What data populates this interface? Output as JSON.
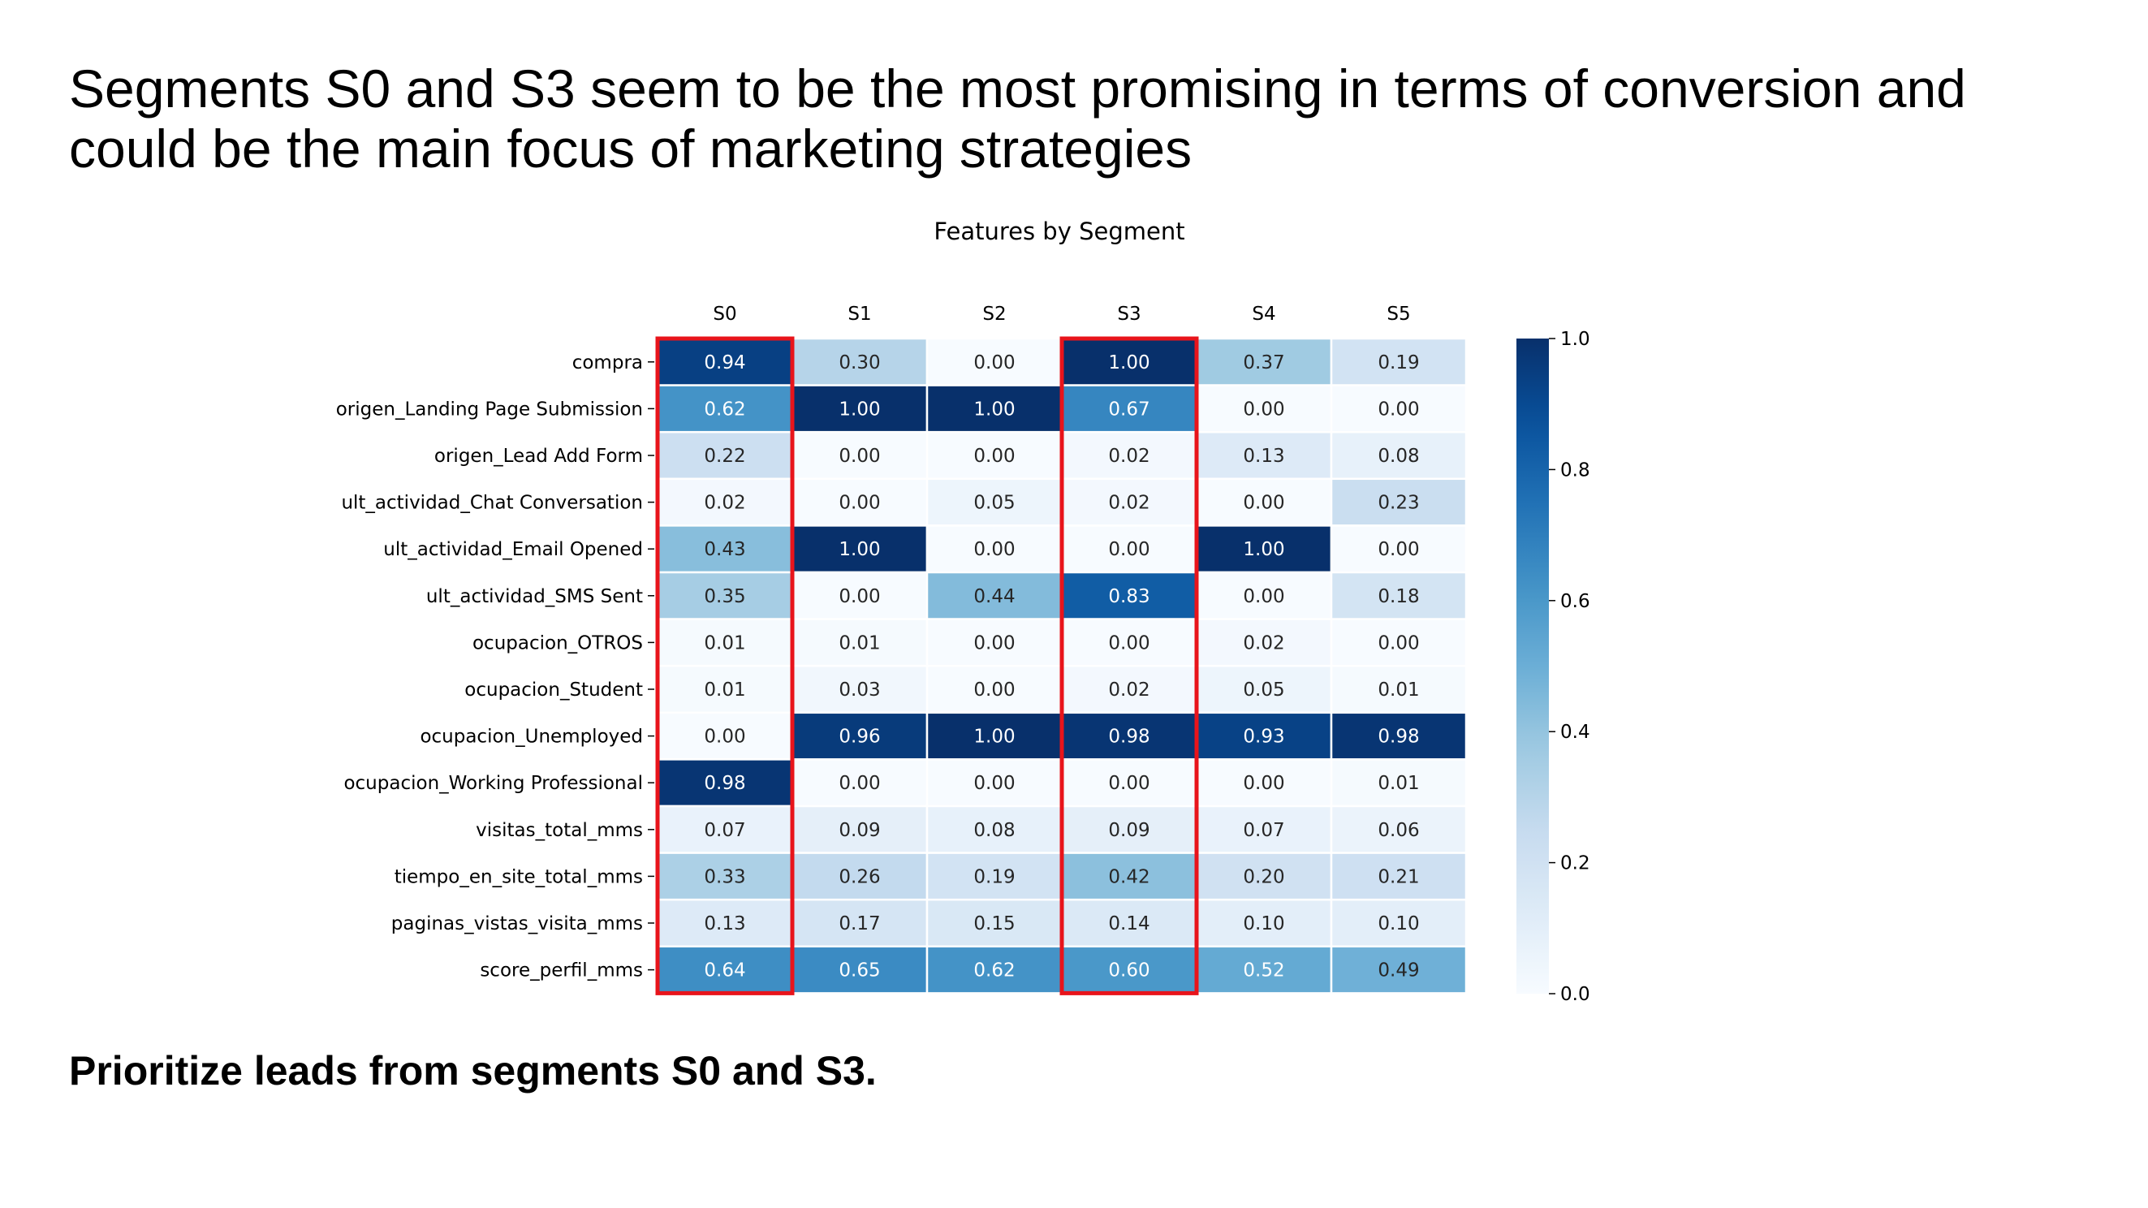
{
  "slide": {
    "headline": "Segments S0 and S3 seem to be the most promising in terms of conversion and could be the main focus of marketing strategies",
    "takeaway": "Prioritize leads from segments S0 and S3."
  },
  "chart_data": {
    "type": "heatmap",
    "title": "Features by Segment",
    "columns": [
      "S0",
      "S1",
      "S2",
      "S3",
      "S4",
      "S5"
    ],
    "rows": [
      "compra",
      "origen_Landing Page Submission",
      "origen_Lead Add Form",
      "ult_actividad_Chat Conversation",
      "ult_actividad_Email Opened",
      "ult_actividad_SMS Sent",
      "ocupacion_OTROS",
      "ocupacion_Student",
      "ocupacion_Unemployed",
      "ocupacion_Working Professional",
      "visitas_total_mms",
      "tiempo_en_site_total_mms",
      "paginas_vistas_visita_mms",
      "score_perfil_mms"
    ],
    "values": [
      [
        0.94,
        0.3,
        0.0,
        1.0,
        0.37,
        0.19
      ],
      [
        0.62,
        1.0,
        1.0,
        0.67,
        0.0,
        0.0
      ],
      [
        0.22,
        0.0,
        0.0,
        0.02,
        0.13,
        0.08
      ],
      [
        0.02,
        0.0,
        0.05,
        0.02,
        0.0,
        0.23
      ],
      [
        0.43,
        1.0,
        0.0,
        0.0,
        1.0,
        0.0
      ],
      [
        0.35,
        0.0,
        0.44,
        0.83,
        0.0,
        0.18
      ],
      [
        0.01,
        0.01,
        0.0,
        0.0,
        0.02,
        0.0
      ],
      [
        0.01,
        0.03,
        0.0,
        0.02,
        0.05,
        0.01
      ],
      [
        0.0,
        0.96,
        1.0,
        0.98,
        0.93,
        0.98
      ],
      [
        0.98,
        0.0,
        0.0,
        0.0,
        0.0,
        0.01
      ],
      [
        0.07,
        0.09,
        0.08,
        0.09,
        0.07,
        0.06
      ],
      [
        0.33,
        0.26,
        0.19,
        0.42,
        0.2,
        0.21
      ],
      [
        0.13,
        0.17,
        0.15,
        0.14,
        0.1,
        0.1
      ],
      [
        0.64,
        0.65,
        0.62,
        0.6,
        0.52,
        0.49
      ]
    ],
    "colormap": "Blues",
    "colorbar": {
      "min": 0.0,
      "max": 1.0,
      "ticks": [
        "0.0",
        "0.2",
        "0.4",
        "0.6",
        "0.8",
        "1.0"
      ]
    },
    "highlighted_columns": [
      "S0",
      "S3"
    ],
    "highlight_color": "#e8141b"
  }
}
